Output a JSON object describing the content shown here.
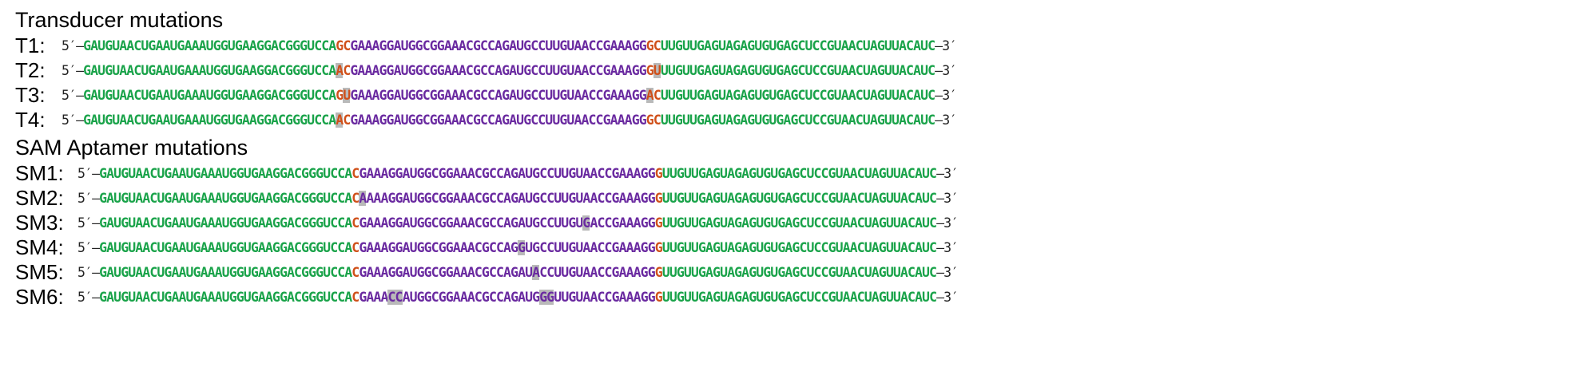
{
  "sections": [
    {
      "title": "Transducer mutations",
      "rows": [
        {
          "label": "T1:",
          "five": "5′–",
          "three": "–3′",
          "segments": [
            {
              "text": "GAUGUAACUGAAUGAAAUGGUGAAGGACGGGUCCA",
              "color": "green"
            },
            {
              "text": "GC",
              "color": "orange"
            },
            {
              "text": "GAAAGGAUGGCGGAAACGCCAGAUGCCUUGUAACCGAAAGG",
              "color": "purple"
            },
            {
              "text": "GC",
              "color": "orange"
            },
            {
              "text": "UUGUUGAGUAGAGUGUGAGCUCCGUAACUAGUUACAUC",
              "color": "green"
            }
          ]
        },
        {
          "label": "T2:",
          "five": "5′–",
          "three": "–3′",
          "segments": [
            {
              "text": "GAUGUAACUGAAUGAAAUGGUGAAGGACGGGUCCA",
              "color": "green"
            },
            {
              "text": "A",
              "color": "orange",
              "highlight": true
            },
            {
              "text": "C",
              "color": "orange"
            },
            {
              "text": "GAAAGGAUGGCGGAAACGCCAGAUGCCUUGUAACCGAAAGG",
              "color": "purple"
            },
            {
              "text": "G",
              "color": "orange"
            },
            {
              "text": "U",
              "color": "orange",
              "highlight": true
            },
            {
              "text": "UUGUUGAGUAGAGUGUGAGCUCCGUAACUAGUUACAUC",
              "color": "green"
            }
          ]
        },
        {
          "label": "T3:",
          "five": "5′–",
          "three": "–3′",
          "segments": [
            {
              "text": "GAUGUAACUGAAUGAAAUGGUGAAGGACGGGUCCA",
              "color": "green"
            },
            {
              "text": "G",
              "color": "orange"
            },
            {
              "text": "U",
              "color": "orange",
              "highlight": true
            },
            {
              "text": "GAAAGGAUGGCGGAAACGCCAGAUGCCUUGUAACCGAAAGG",
              "color": "purple"
            },
            {
              "text": "A",
              "color": "orange",
              "highlight": true
            },
            {
              "text": "C",
              "color": "orange"
            },
            {
              "text": "UUGUUGAGUAGAGUGUGAGCUCCGUAACUAGUUACAUC",
              "color": "green"
            }
          ]
        },
        {
          "label": "T4:",
          "five": "5′–",
          "three": "–3′",
          "segments": [
            {
              "text": "GAUGUAACUGAAUGAAAUGGUGAAGGACGGGUCCA",
              "color": "green"
            },
            {
              "text": "A",
              "color": "orange",
              "highlight": true
            },
            {
              "text": "C",
              "color": "orange"
            },
            {
              "text": "GAAAGGAUGGCGGAAACGCCAGAUGCCUUGUAACCGAAAGG",
              "color": "purple"
            },
            {
              "text": "GC",
              "color": "orange"
            },
            {
              "text": "UUGUUGAGUAGAGUGUGAGCUCCGUAACUAGUUACAUC",
              "color": "green"
            }
          ]
        }
      ]
    },
    {
      "title": "SAM Aptamer mutations",
      "rows": [
        {
          "label": "SM1:",
          "five": "5′–",
          "three": "–3′",
          "segments": [
            {
              "text": "GAUGUAACUGAAUGAAAUGGUGAAGGACGGGUCCA",
              "color": "green"
            },
            {
              "text": "C",
              "color": "orange"
            },
            {
              "text": "GAAAGGAUGGCGGAAACGCCAGAUGCCUUGUAACCGAAAGG",
              "color": "purple"
            },
            {
              "text": "G",
              "color": "orange"
            },
            {
              "text": "UUGUUGAGUAGAGUGUGAGCUCCGUAACUAGUUACAUC",
              "color": "green"
            }
          ]
        },
        {
          "label": "SM2:",
          "five": "5′–",
          "three": "–3′",
          "segments": [
            {
              "text": "GAUGUAACUGAAUGAAAUGGUGAAGGACGGGUCCA",
              "color": "green"
            },
            {
              "text": "C",
              "color": "orange"
            },
            {
              "text": "A",
              "color": "purple",
              "highlight": true
            },
            {
              "text": "AAAGGAUGGCGGAAACGCCAGAUGCCUUGUAACCGAAAGG",
              "color": "purple"
            },
            {
              "text": "G",
              "color": "orange"
            },
            {
              "text": "UUGUUGAGUAGAGUGUGAGCUCCGUAACUAGUUACAUC",
              "color": "green"
            }
          ]
        },
        {
          "label": "SM3:",
          "five": "5′–",
          "three": "–3′",
          "segments": [
            {
              "text": "GAUGUAACUGAAUGAAAUGGUGAAGGACGGGUCCA",
              "color": "green"
            },
            {
              "text": "C",
              "color": "orange"
            },
            {
              "text": "GAAAGGAUGGCGGAAACGCCAGAUGCCUUGU",
              "color": "purple"
            },
            {
              "text": "G",
              "color": "purple",
              "highlight": true
            },
            {
              "text": "ACCGAAAGG",
              "color": "purple"
            },
            {
              "text": "G",
              "color": "orange"
            },
            {
              "text": "UUGUUGAGUAGAGUGUGAGCUCCGUAACUAGUUACAUC",
              "color": "green"
            }
          ]
        },
        {
          "label": "SM4:",
          "five": "5′–",
          "three": "–3′",
          "segments": [
            {
              "text": "GAUGUAACUGAAUGAAAUGGUGAAGGACGGGUCCA",
              "color": "green"
            },
            {
              "text": "C",
              "color": "orange"
            },
            {
              "text": "GAAAGGAUGGCGGAAACGCCAG",
              "color": "purple"
            },
            {
              "text": "G",
              "color": "purple",
              "highlight": true
            },
            {
              "text": "UGCCUUGUAACCGAAAGG",
              "color": "purple"
            },
            {
              "text": "G",
              "color": "orange"
            },
            {
              "text": "UUGUUGAGUAGAGUGUGAGCUCCGUAACUAGUUACAUC",
              "color": "green"
            }
          ]
        },
        {
          "label": "SM5:",
          "five": "5′–",
          "three": "–3′",
          "segments": [
            {
              "text": "GAUGUAACUGAAUGAAAUGGUGAAGGACGGGUCCA",
              "color": "green"
            },
            {
              "text": "C",
              "color": "orange"
            },
            {
              "text": "GAAAGGAUGGCGGAAACGCCAGAU",
              "color": "purple"
            },
            {
              "text": "A",
              "color": "purple",
              "highlight": true
            },
            {
              "text": "CCUUGUAACCGAAAGG",
              "color": "purple"
            },
            {
              "text": "G",
              "color": "orange"
            },
            {
              "text": "UUGUUGAGUAGAGUGUGAGCUCCGUAACUAGUUACAUC",
              "color": "green"
            }
          ]
        },
        {
          "label": "SM6:",
          "five": "5′–",
          "three": "–3′",
          "segments": [
            {
              "text": "GAUGUAACUGAAUGAAAUGGUGAAGGACGGGUCCA",
              "color": "green"
            },
            {
              "text": "C",
              "color": "orange"
            },
            {
              "text": "GAAA",
              "color": "purple"
            },
            {
              "text": "CC",
              "color": "purple",
              "highlight": true
            },
            {
              "text": "AUGGCGGAAACGCCAGAUG",
              "color": "purple"
            },
            {
              "text": "GG",
              "color": "purple",
              "highlight": true
            },
            {
              "text": "UUGUAACCGAAAGG",
              "color": "purple"
            },
            {
              "text": "G",
              "color": "orange"
            },
            {
              "text": "UUGUUGAGUAGAGUGUGAGCUCCGUAACUAGUUACAUC",
              "color": "green"
            }
          ]
        }
      ]
    }
  ],
  "colors": {
    "green": "#1aa34a",
    "purple": "#6a2aa0",
    "orange": "#d0501a",
    "highlight": "#b9b9b9"
  }
}
